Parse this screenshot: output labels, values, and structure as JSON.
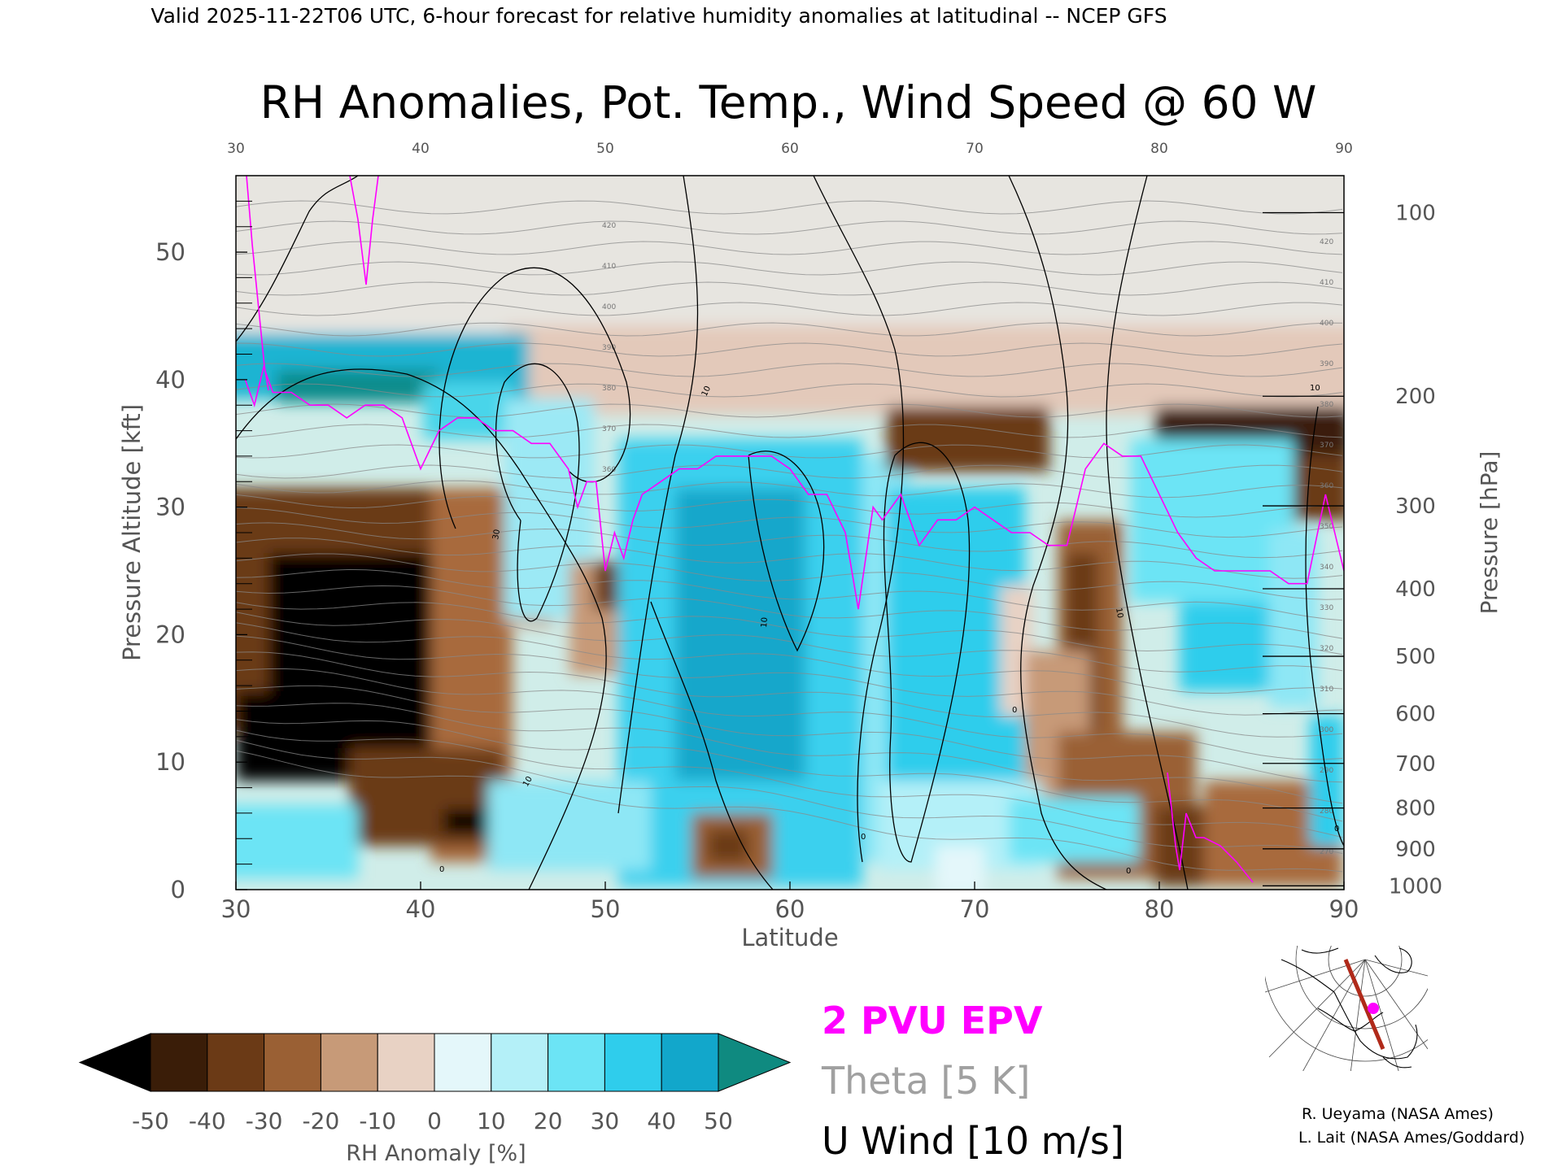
{
  "header": "Valid 2025-11-22T06 UTC, 6-hour forecast for relative humidity anomalies at latitudinal -- NCEP GFS",
  "chart_data": {
    "type": "heatmap",
    "title": "RH Anomalies, Pot. Temp., Wind Speed @ 60 W",
    "xlabel": "Latitude",
    "ylabel_left": "Pressure Altitude [kft]",
    "ylabel_right": "Pressure [hPa]",
    "xlim": [
      30,
      90
    ],
    "ylim": [
      0,
      56
    ],
    "x_ticks": [
      "30",
      "40",
      "50",
      "60",
      "70",
      "80",
      "90"
    ],
    "y_ticks_left": [
      "0",
      "10",
      "20",
      "30",
      "40",
      "50"
    ],
    "y_ticks_right": [
      {
        "label": "100",
        "alt_kft": 53.1
      },
      {
        "label": "200",
        "alt_kft": 38.7
      },
      {
        "label": "300",
        "alt_kft": 30.1
      },
      {
        "label": "400",
        "alt_kft": 23.6
      },
      {
        "label": "500",
        "alt_kft": 18.3
      },
      {
        "label": "600",
        "alt_kft": 13.8
      },
      {
        "label": "700",
        "alt_kft": 9.9
      },
      {
        "label": "800",
        "alt_kft": 6.4
      },
      {
        "label": "900",
        "alt_kft": 3.2
      },
      {
        "label": "1000",
        "alt_kft": 0.3
      }
    ],
    "colorbar": {
      "label": "RH Anomaly [%]",
      "ticks": [
        "-50",
        "-40",
        "-30",
        "-20",
        "-10",
        "0",
        "10",
        "20",
        "30",
        "40",
        "50"
      ],
      "colors": [
        "#000000",
        "#3a1d08",
        "#6b3a16",
        "#9a6034",
        "#c79a78",
        "#e8d2c4",
        "#e4f7fa",
        "#b4f0f8",
        "#6ce4f5",
        "#2fcdec",
        "#12a7cb",
        "#0a7f9c",
        "#0f8a80"
      ]
    },
    "legend": [
      {
        "label": "2 PVU EPV",
        "color": "#ff00ff"
      },
      {
        "label": "Theta [5 K]",
        "color": "#a0a0a0"
      },
      {
        "label": "U Wind [10 m/s]",
        "color": "#000000"
      }
    ],
    "theta_labels": [
      "270",
      "280",
      "290",
      "300",
      "310",
      "320",
      "330",
      "340",
      "350",
      "360",
      "370",
      "380",
      "390",
      "400",
      "410",
      "420"
    ],
    "wind_labels": [
      "0",
      "10",
      "30"
    ],
    "series": [
      {
        "name": "2 PVU EPV",
        "color": "#ff00ff",
        "x": [
          30.5,
          31,
          31.5,
          32,
          33,
          34,
          35,
          36,
          37,
          38,
          39,
          40,
          41,
          42,
          43,
          44,
          45,
          46,
          47,
          48,
          48.5,
          49,
          49.5,
          50,
          50.5,
          51,
          51.5,
          52,
          53,
          54,
          55,
          56,
          57,
          58,
          59,
          60,
          61,
          62,
          63,
          63.7,
          64.5,
          65,
          66,
          67,
          68,
          69,
          70,
          71,
          72,
          73,
          74,
          75,
          76,
          77,
          78,
          79,
          80,
          81,
          82,
          83,
          84,
          85,
          86,
          87,
          88,
          89,
          90
        ],
        "y": [
          40,
          38,
          41,
          39,
          39,
          38,
          38,
          37,
          38,
          38,
          37,
          33,
          36,
          37,
          37,
          36,
          36,
          35,
          35,
          33,
          30,
          32,
          32,
          25,
          28,
          26,
          29,
          31,
          32,
          33,
          33,
          34,
          34,
          34,
          34,
          33,
          31,
          31,
          28,
          22,
          30,
          29,
          31,
          27,
          29,
          29,
          30,
          29,
          28,
          28,
          27,
          27,
          33,
          35,
          34,
          34,
          31,
          28,
          26,
          25,
          25,
          25,
          25,
          24,
          24,
          31,
          25
        ]
      }
    ]
  },
  "map_inset": {
    "marker_color": "#ff00ff",
    "line_color": "#b02a1a"
  },
  "credits": [
    "R. Ueyama (NASA Ames)",
    "L. Lait (NASA Ames/Goddard)"
  ]
}
